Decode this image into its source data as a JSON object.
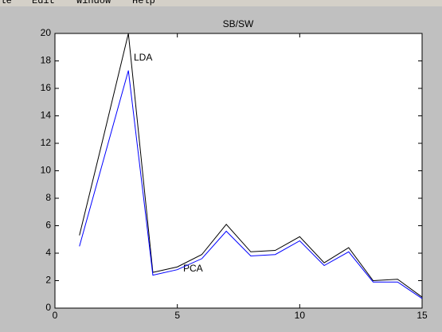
{
  "menu": [
    "File",
    "Edit",
    "Window",
    "Help"
  ],
  "chart_data": {
    "type": "line",
    "title": "SB/SW",
    "x": [
      1,
      2,
      3,
      4,
      5,
      6,
      7,
      8,
      9,
      10,
      11,
      12,
      13,
      14,
      15
    ],
    "series": [
      {
        "name": "LDA",
        "color": "#000000",
        "values": [
          5.3,
          12.6,
          20,
          2.6,
          3.0,
          3.9,
          6.1,
          4.1,
          4.2,
          5.2,
          3.3,
          4.4,
          2.0,
          2.1,
          0.8
        ]
      },
      {
        "name": "PCA",
        "color": "#0000ff",
        "values": [
          4.5,
          10.9,
          17.3,
          2.4,
          2.8,
          3.6,
          5.6,
          3.8,
          3.9,
          4.9,
          3.1,
          4.1,
          1.9,
          1.9,
          0.7
        ]
      }
    ],
    "xlim": [
      0,
      15
    ],
    "xticks": [
      0,
      5,
      10,
      15
    ],
    "ylim": [
      0,
      20
    ],
    "yticks": [
      0,
      2,
      4,
      6,
      8,
      10,
      12,
      14,
      16,
      18,
      20
    ],
    "grid": false
  }
}
